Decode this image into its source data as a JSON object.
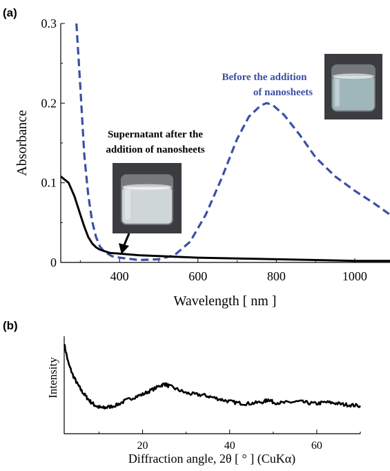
{
  "chart_data": [
    {
      "type": "line",
      "panel_label": "(a)",
      "xlabel": "Wavelength [ nm ]",
      "ylabel": "Absorbance",
      "xlim": [
        250,
        1090
      ],
      "ylim": [
        0,
        0.3
      ],
      "xticks": [
        "400",
        "600",
        "800",
        "1000"
      ],
      "yticks": [
        "0",
        "0.1",
        "0.2",
        "0.3"
      ],
      "grid": false,
      "series": [
        {
          "name": "Before the addition of nanosheets",
          "style": "dashed",
          "color": "#3a4fa3",
          "x": [
            290,
            300,
            310,
            320,
            330,
            340,
            350,
            360,
            380,
            400,
            450,
            500,
            540,
            580,
            620,
            660,
            700,
            730,
            760,
            775,
            790,
            820,
            860,
            900,
            950,
            1000,
            1050,
            1090
          ],
          "y": [
            0.3,
            0.22,
            0.135,
            0.085,
            0.052,
            0.032,
            0.02,
            0.014,
            0.008,
            0.006,
            0.003,
            0.004,
            0.009,
            0.026,
            0.06,
            0.105,
            0.155,
            0.183,
            0.197,
            0.2,
            0.198,
            0.185,
            0.16,
            0.132,
            0.108,
            0.09,
            0.074,
            0.06
          ]
        },
        {
          "name": "Supernatant after the addition of nanosheets",
          "style": "solid",
          "color": "#000000",
          "x": [
            250,
            270,
            285,
            300,
            310,
            320,
            330,
            340,
            350,
            375,
            400,
            450,
            500,
            600,
            700,
            800,
            900,
            1000,
            1090
          ],
          "y": [
            0.108,
            0.1,
            0.083,
            0.06,
            0.045,
            0.032,
            0.024,
            0.019,
            0.016,
            0.012,
            0.011,
            0.009,
            0.008,
            0.006,
            0.005,
            0.004,
            0.003,
            0.002,
            0.002
          ]
        }
      ],
      "annotations": [
        {
          "text": "Supernatant after the addition of nanosheets",
          "lines": [
            "Supernatant after the",
            "addition of nanosheets"
          ],
          "color": "#000000"
        },
        {
          "text": "Before the addition of nanosheets",
          "lines": [
            "Before the addition",
            "of nanosheets"
          ],
          "color": "#3a4fa3"
        }
      ]
    },
    {
      "type": "line",
      "panel_label": "(b)",
      "xlabel": "Diffraction angle, 2θ [ ° ] (CuKα)",
      "ylabel": "Intensity",
      "xlim": [
        2,
        70
      ],
      "xticks": [
        "20",
        "40",
        "60"
      ],
      "grid": false,
      "series": [
        {
          "style": "solid",
          "color": "#000000",
          "x": [
            2,
            3,
            4,
            5,
            6,
            7,
            8,
            9,
            10,
            11,
            12,
            14,
            16,
            18,
            20,
            22,
            24,
            25,
            26,
            28,
            30,
            32,
            34,
            36,
            38,
            40,
            42,
            44,
            46,
            48,
            49,
            50,
            52,
            54,
            56,
            58,
            60,
            62,
            64,
            66,
            68,
            70
          ],
          "y": [
            1.0,
            0.72,
            0.56,
            0.44,
            0.34,
            0.26,
            0.19,
            0.14,
            0.11,
            0.1,
            0.11,
            0.14,
            0.2,
            0.25,
            0.29,
            0.35,
            0.41,
            0.44,
            0.41,
            0.36,
            0.31,
            0.29,
            0.28,
            0.25,
            0.22,
            0.19,
            0.17,
            0.16,
            0.17,
            0.19,
            0.22,
            0.18,
            0.17,
            0.18,
            0.19,
            0.17,
            0.16,
            0.18,
            0.17,
            0.15,
            0.14,
            0.13
          ]
        }
      ]
    }
  ],
  "insets": [
    {
      "name": "beaker-supernatant",
      "tint": "#cfd6d6"
    },
    {
      "name": "beaker-before",
      "tint": "#9fb6bb"
    }
  ]
}
